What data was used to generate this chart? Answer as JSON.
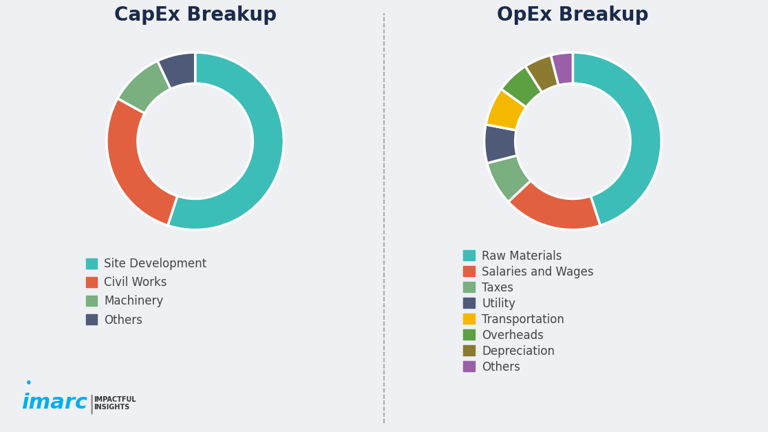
{
  "capex_title": "CapEx Breakup",
  "opex_title": "OpEx Breakup",
  "capex_labels": [
    "Site Development",
    "Civil Works",
    "Machinery",
    "Others"
  ],
  "capex_values": [
    55,
    28,
    10,
    7
  ],
  "capex_colors": [
    "#3DBDB8",
    "#E26040",
    "#7AAF80",
    "#4E5A78"
  ],
  "opex_labels": [
    "Raw Materials",
    "Salaries and Wages",
    "Taxes",
    "Utility",
    "Transportation",
    "Overheads",
    "Depreciation",
    "Others"
  ],
  "opex_values": [
    45,
    18,
    8,
    7,
    7,
    6,
    5,
    4
  ],
  "opex_colors": [
    "#3DBDB8",
    "#E26040",
    "#7AAF80",
    "#4E5A78",
    "#F5B800",
    "#5CA042",
    "#8B7A30",
    "#9B5EA8"
  ],
  "bg_color": "#EEF0F4",
  "title_color": "#1B2A4A",
  "legend_text_color": "#444444",
  "divider_color": "#999999",
  "imarc_color": "#00AEEF",
  "imarc_text_color": "#333333",
  "legend_fontsize": 12,
  "title_fontsize": 20,
  "donut_width": 0.35
}
